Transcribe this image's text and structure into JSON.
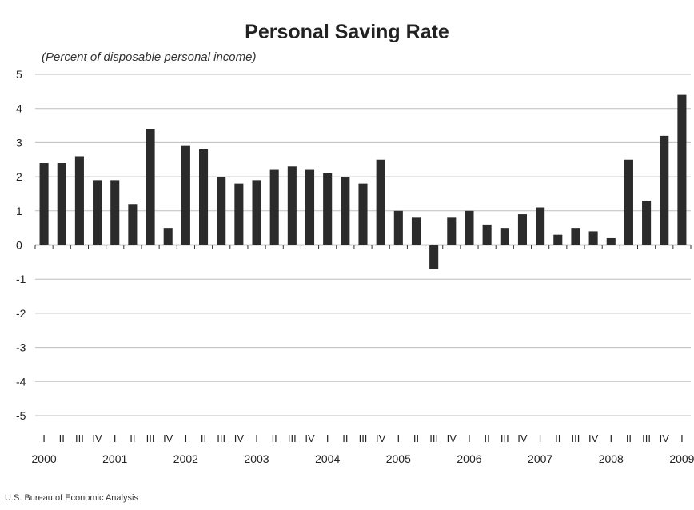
{
  "chart_data": {
    "type": "bar",
    "title": "Personal Saving Rate",
    "subtitle": "(Percent of disposable personal income)",
    "xlabel": "",
    "ylabel": "",
    "ylim": [
      -5,
      5
    ],
    "yticks": [
      5,
      4,
      3,
      2,
      1,
      0,
      -1,
      -2,
      -3,
      -4,
      -5
    ],
    "grid": true,
    "legend": "none",
    "bar_color": "#2b2b2b",
    "categories": [
      "2000 I",
      "2000 II",
      "2000 III",
      "2000 IV",
      "2001 I",
      "2001 II",
      "2001 III",
      "2001 IV",
      "2002 I",
      "2002 II",
      "2002 III",
      "2002 IV",
      "2003 I",
      "2003 II",
      "2003 III",
      "2003 IV",
      "2004 I",
      "2004 II",
      "2004 III",
      "2004 IV",
      "2005 I",
      "2005 II",
      "2005 III",
      "2005 IV",
      "2006 I",
      "2006 II",
      "2006 III",
      "2006 IV",
      "2007 I",
      "2007 II",
      "2007 III",
      "2007 IV",
      "2008 I",
      "2008 II",
      "2008 III",
      "2008 IV",
      "2009 I"
    ],
    "quarter_labels": [
      "I",
      "II",
      "III",
      "IV",
      "I",
      "II",
      "III",
      "IV",
      "I",
      "II",
      "III",
      "IV",
      "I",
      "II",
      "III",
      "IV",
      "I",
      "II",
      "III",
      "IV",
      "I",
      "II",
      "III",
      "IV",
      "I",
      "II",
      "III",
      "IV",
      "I",
      "II",
      "III",
      "IV",
      "I",
      "II",
      "III",
      "IV",
      "I"
    ],
    "years": [
      "2000",
      "2001",
      "2002",
      "2003",
      "2004",
      "2005",
      "2006",
      "2007",
      "2008",
      "2009"
    ],
    "values": [
      2.4,
      2.4,
      2.6,
      1.9,
      1.9,
      1.2,
      3.4,
      0.5,
      2.9,
      2.8,
      2.0,
      1.8,
      1.9,
      2.2,
      2.3,
      2.2,
      2.1,
      2.0,
      1.8,
      2.5,
      1.0,
      0.8,
      -0.7,
      0.8,
      1.0,
      0.6,
      0.5,
      0.9,
      1.1,
      0.3,
      0.5,
      0.4,
      0.2,
      2.5,
      1.3,
      3.2,
      4.4
    ]
  },
  "footer": {
    "source": "U.S. Bureau of Economic Analysis"
  }
}
